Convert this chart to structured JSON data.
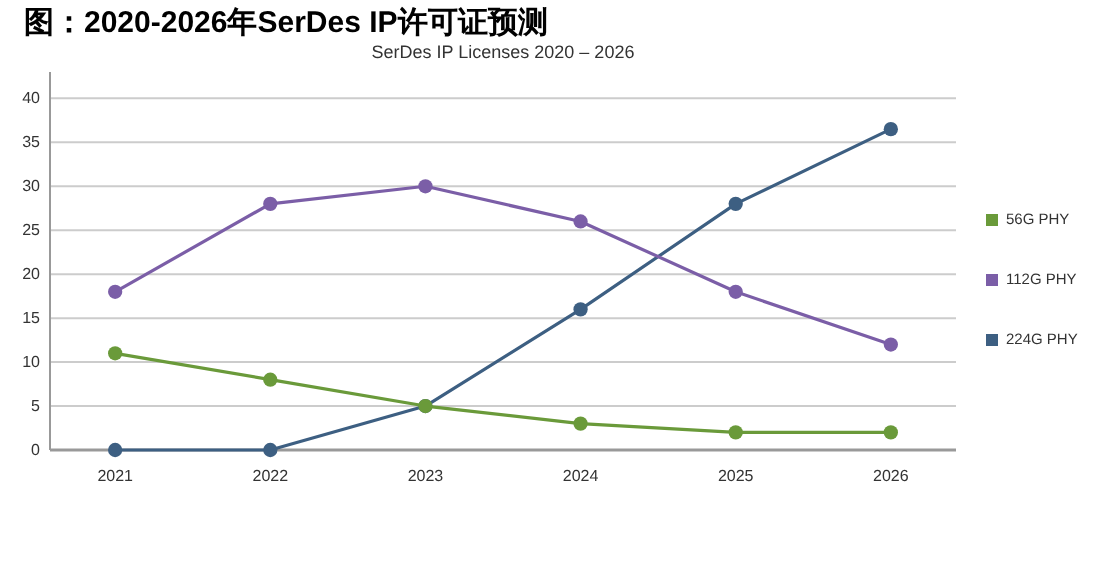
{
  "chart_data": {
    "type": "line",
    "title": "图：2020-2026年SerDes IP许可证预测",
    "subtitle": "SerDes IP Licenses 2020 – 2026",
    "categories": [
      "2021",
      "2022",
      "2023",
      "2024",
      "2025",
      "2026"
    ],
    "series": [
      {
        "name": "56G PHY",
        "color": "#6a9a3a",
        "values": [
          11,
          8,
          5,
          3,
          2,
          2
        ]
      },
      {
        "name": "112G PHY",
        "color": "#7b5ea7",
        "values": [
          18,
          28,
          30,
          26,
          18,
          12
        ]
      },
      {
        "name": "224G PHY",
        "color": "#3d5f82",
        "values": [
          0,
          0,
          5,
          16,
          28,
          36.5
        ]
      }
    ],
    "ylim": [
      0,
      43
    ],
    "yticks": [
      0,
      5,
      10,
      15,
      20,
      25,
      30,
      35,
      40
    ],
    "grid": "y",
    "legend": "right",
    "marker": "circle"
  }
}
